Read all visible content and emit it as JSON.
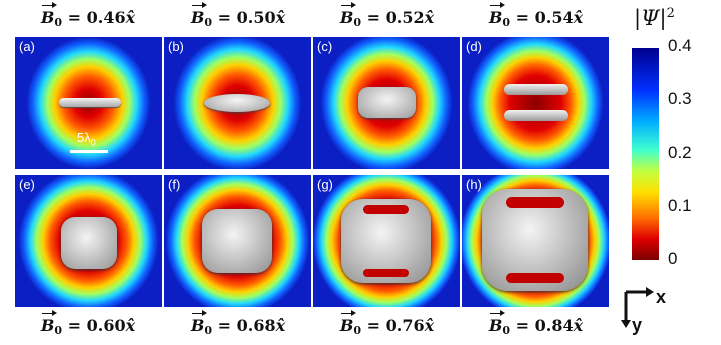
{
  "top_labels": [
    {
      "symbol": "B",
      "sub": "0",
      "value": " = 0.46",
      "dir": "x̂"
    },
    {
      "symbol": "B",
      "sub": "0",
      "value": " = 0.50",
      "dir": "x̂"
    },
    {
      "symbol": "B",
      "sub": "0",
      "value": " = 0.52",
      "dir": "x̂"
    },
    {
      "symbol": "B",
      "sub": "0",
      "value": " = 0.54",
      "dir": "x̂"
    }
  ],
  "bottom_labels": [
    {
      "symbol": "B",
      "sub": "0",
      "value": " = 0.60",
      "dir": "x̂"
    },
    {
      "symbol": "B",
      "sub": "0",
      "value": " = 0.68",
      "dir": "x̂"
    },
    {
      "symbol": "B",
      "sub": "0",
      "value": " = 0.76",
      "dir": "x̂"
    },
    {
      "symbol": "B",
      "sub": "0",
      "value": " = 0.84",
      "dir": "x̂"
    }
  ],
  "panels": [
    "(a)",
    "(b)",
    "(c)",
    "(d)",
    "(e)",
    "(f)",
    "(g)",
    "(h)"
  ],
  "scale_bar_label": "5λ",
  "scale_bar_sub": "0",
  "colorbar": {
    "label": "|Ψ|",
    "label_sup": "2",
    "ticks": [
      "0.4",
      "0.3",
      "0.2",
      "0.1",
      "0"
    ]
  },
  "axes": {
    "x": "x",
    "y": "y"
  },
  "colors": {
    "background": "#0c1fc4",
    "ring": "#dd0000",
    "surface": "#cfcfcf"
  }
}
